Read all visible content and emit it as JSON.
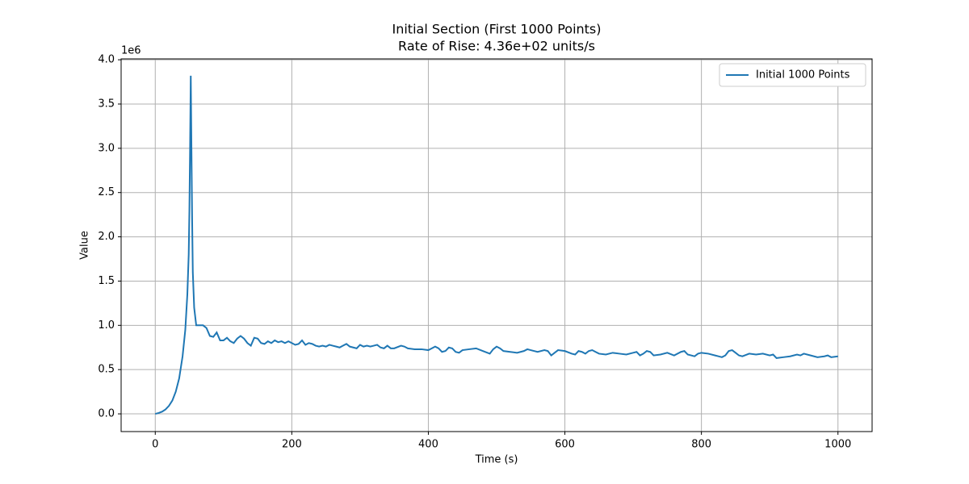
{
  "chart_data": {
    "type": "line",
    "title": "Initial Section (First 1000 Points)",
    "subtitle": "Rate of Rise: 4.36e+02 units/s",
    "x_label": "Time (s)",
    "y_label": "Value",
    "y_offset_label": "1e6",
    "xlim": [
      -50,
      1050
    ],
    "xticks": [
      0,
      200,
      400,
      600,
      800,
      1000
    ],
    "ylim": [
      -0.2,
      4.01
    ],
    "yticks": [
      {
        "value": 0,
        "label": "0.0"
      },
      0.5,
      {
        "value": 1,
        "label": "1.0"
      },
      1.5,
      {
        "value": 2,
        "label": "2.0"
      },
      2.5,
      {
        "value": 3,
        "label": "3.0"
      },
      3.5,
      {
        "value": 4,
        "label": "4.0"
      }
    ],
    "grid": true,
    "legend": "upper right",
    "x": [
      0,
      5,
      10,
      15,
      20,
      25,
      30,
      35,
      40,
      44,
      47,
      49,
      50,
      51,
      52,
      53,
      54,
      55,
      57,
      60,
      65,
      70,
      75,
      80,
      85,
      90,
      95,
      100,
      105,
      110,
      115,
      120,
      125,
      130,
      135,
      140,
      145,
      150,
      155,
      160,
      165,
      170,
      175,
      180,
      185,
      190,
      195,
      200,
      205,
      210,
      215,
      220,
      225,
      230,
      235,
      240,
      245,
      250,
      255,
      260,
      265,
      270,
      275,
      280,
      285,
      290,
      295,
      300,
      305,
      310,
      315,
      320,
      325,
      330,
      335,
      340,
      345,
      350,
      360,
      365,
      370,
      380,
      390,
      400,
      405,
      410,
      415,
      420,
      425,
      430,
      435,
      440,
      445,
      450,
      460,
      470,
      480,
      490,
      495,
      500,
      505,
      510,
      520,
      530,
      540,
      545,
      550,
      560,
      570,
      575,
      580,
      585,
      590,
      600,
      610,
      615,
      620,
      625,
      630,
      635,
      640,
      645,
      650,
      660,
      670,
      680,
      690,
      700,
      705,
      710,
      715,
      720,
      725,
      730,
      740,
      750,
      760,
      770,
      775,
      780,
      790,
      795,
      800,
      810,
      820,
      830,
      835,
      840,
      845,
      850,
      855,
      860,
      870,
      880,
      890,
      900,
      905,
      910,
      920,
      930,
      940,
      945,
      950,
      960,
      970,
      980,
      985,
      990,
      1000
    ],
    "series": [
      {
        "name": "Initial 1000 Points",
        "color": "#1f77b4",
        "values": [
          0.0,
          0.01,
          0.025,
          0.05,
          0.09,
          0.15,
          0.25,
          0.4,
          0.65,
          0.95,
          1.35,
          1.8,
          2.3,
          3.0,
          3.82,
          3.0,
          2.2,
          1.6,
          1.2,
          1.0,
          1.0,
          1.0,
          0.97,
          0.88,
          0.87,
          0.92,
          0.83,
          0.83,
          0.86,
          0.82,
          0.8,
          0.85,
          0.88,
          0.85,
          0.8,
          0.77,
          0.86,
          0.85,
          0.8,
          0.79,
          0.82,
          0.8,
          0.83,
          0.81,
          0.82,
          0.8,
          0.82,
          0.8,
          0.78,
          0.79,
          0.83,
          0.78,
          0.8,
          0.79,
          0.77,
          0.76,
          0.77,
          0.76,
          0.78,
          0.77,
          0.76,
          0.75,
          0.77,
          0.79,
          0.76,
          0.75,
          0.74,
          0.78,
          0.76,
          0.77,
          0.76,
          0.77,
          0.78,
          0.75,
          0.74,
          0.77,
          0.74,
          0.74,
          0.77,
          0.76,
          0.74,
          0.73,
          0.73,
          0.72,
          0.74,
          0.76,
          0.74,
          0.7,
          0.71,
          0.75,
          0.74,
          0.7,
          0.69,
          0.72,
          0.73,
          0.74,
          0.71,
          0.68,
          0.73,
          0.76,
          0.74,
          0.71,
          0.7,
          0.69,
          0.71,
          0.73,
          0.72,
          0.7,
          0.72,
          0.71,
          0.66,
          0.69,
          0.72,
          0.71,
          0.68,
          0.67,
          0.71,
          0.7,
          0.68,
          0.71,
          0.72,
          0.7,
          0.68,
          0.67,
          0.69,
          0.68,
          0.67,
          0.69,
          0.7,
          0.66,
          0.68,
          0.71,
          0.7,
          0.66,
          0.67,
          0.69,
          0.66,
          0.7,
          0.71,
          0.67,
          0.65,
          0.68,
          0.69,
          0.68,
          0.66,
          0.64,
          0.66,
          0.71,
          0.72,
          0.69,
          0.66,
          0.65,
          0.68,
          0.67,
          0.68,
          0.66,
          0.67,
          0.63,
          0.64,
          0.65,
          0.67,
          0.66,
          0.68,
          0.66,
          0.64,
          0.65,
          0.66,
          0.64,
          0.65
        ]
      }
    ]
  }
}
